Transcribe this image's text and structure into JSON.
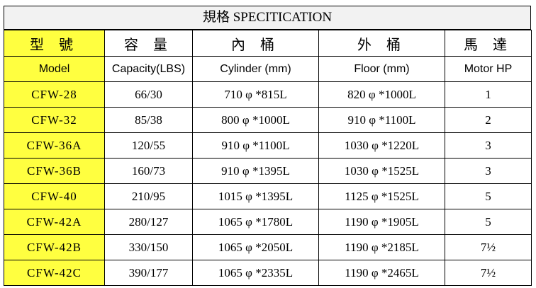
{
  "title": "規格 SPECITICATION",
  "header_zh": [
    "型 號",
    "容 量",
    "內 桶",
    "外 桶",
    "馬 達"
  ],
  "header_en": [
    "Model",
    "Capacity(LBS)",
    "Cylinder (mm)",
    "Floor (mm)",
    "Motor HP"
  ],
  "rows": [
    [
      "CFW-28",
      "66/30",
      "710 φ *815L",
      "820 φ *1000L",
      "1"
    ],
    [
      "CFW-32",
      "85/38",
      "800 φ *1000L",
      "910 φ *1100L",
      "2"
    ],
    [
      "CFW-36A",
      "120/55",
      "910 φ *1100L",
      "1030 φ *1220L",
      "3"
    ],
    [
      "CFW-36B",
      "160/73",
      "910 φ *1395L",
      "1030 φ *1525L",
      "3"
    ],
    [
      "CFW-40",
      "210/95",
      "1015 φ *1395L",
      "1125 φ *1525L",
      "5"
    ],
    [
      "CFW-42A",
      "280/127",
      "1065 φ *1780L",
      "1190 φ *1905L",
      "5"
    ],
    [
      "CFW-42B",
      "330/150",
      "1065 φ *2050L",
      "1190 φ *2185L",
      "7½"
    ],
    [
      "CFW-42C",
      "390/177",
      "1065 φ *2335L",
      "1190 φ *2465L",
      "7½"
    ]
  ],
  "colors": {
    "model_column": "#ffff40",
    "title_background": "#f2f2f2"
  }
}
